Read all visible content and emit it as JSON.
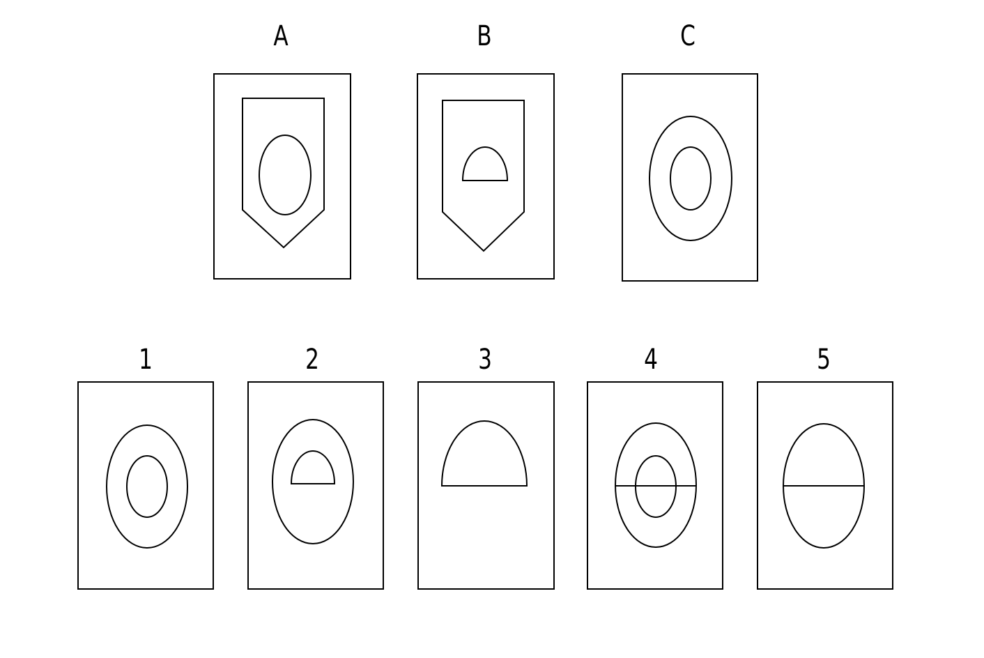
{
  "question_figures": [
    {
      "label": "A"
    },
    {
      "label": "B"
    },
    {
      "label": "C"
    }
  ],
  "answer_options": [
    {
      "label": "1"
    },
    {
      "label": "2"
    },
    {
      "label": "3"
    },
    {
      "label": "4"
    },
    {
      "label": "5"
    }
  ],
  "colors": {
    "stroke": "#000000",
    "background": "#ffffff"
  }
}
